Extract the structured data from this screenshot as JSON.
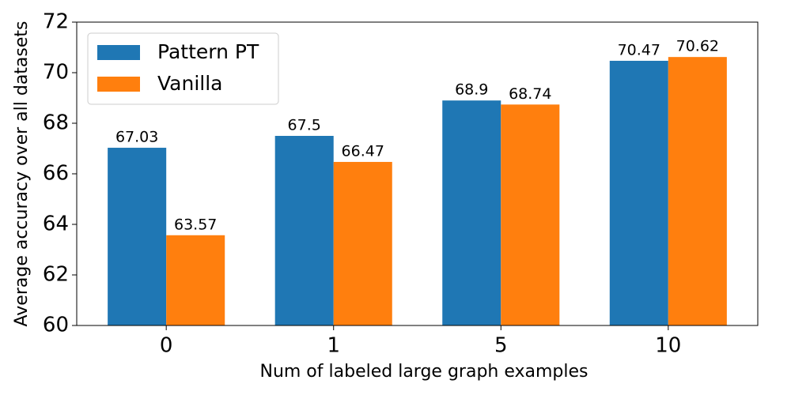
{
  "chart_data": {
    "type": "bar",
    "xlabel": "Num of labeled large graph examples",
    "ylabel": "Average accuracy over all datasets",
    "categories": [
      "0",
      "1",
      "5",
      "10"
    ],
    "series": [
      {
        "name": "Pattern PT",
        "color": "#1f77b4",
        "values": [
          67.03,
          67.5,
          68.9,
          70.47
        ]
      },
      {
        "name": "Vanilla",
        "color": "#ff7f0e",
        "values": [
          63.57,
          66.47,
          68.74,
          70.62
        ]
      }
    ],
    "ylim": [
      60,
      72
    ],
    "yticks": [
      60,
      62,
      64,
      66,
      68,
      70,
      72
    ],
    "legend": "upper left"
  }
}
